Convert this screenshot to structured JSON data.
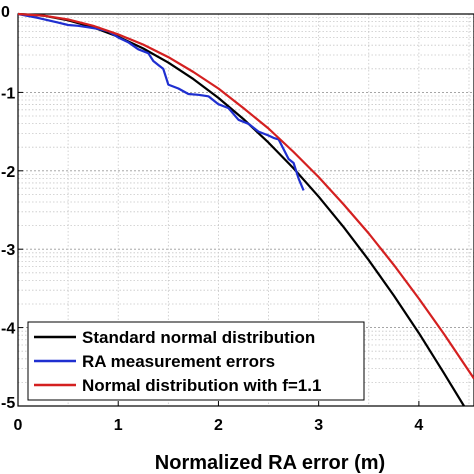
{
  "chart_data": {
    "type": "line",
    "xlabel": "Normalized RA error (m)",
    "ylabel": "",
    "xlim": [
      0,
      4.55
    ],
    "ylim": [
      -5,
      0
    ],
    "x_ticks": [
      0,
      1,
      2,
      3,
      4
    ],
    "y_ticks": [
      0,
      -1,
      -2,
      -3,
      -4,
      -5
    ],
    "y_tick_labels": [
      "0",
      "-1",
      "-2",
      "-3",
      "-4",
      "-5"
    ],
    "grid": "minor dotted horizontal, dotted vertical",
    "legend_position": "bottom-left",
    "series": [
      {
        "name": "Standard normal distribution",
        "color": "#000000",
        "x": [
          0,
          0.25,
          0.5,
          0.75,
          1.0,
          1.25,
          1.5,
          1.75,
          2.0,
          2.25,
          2.5,
          2.75,
          3.0,
          3.25,
          3.5,
          3.75,
          4.0,
          4.25,
          4.45
        ],
        "values": [
          0,
          -0.02,
          -0.08,
          -0.17,
          -0.29,
          -0.44,
          -0.62,
          -0.83,
          -1.07,
          -1.34,
          -1.64,
          -1.97,
          -2.33,
          -2.72,
          -3.14,
          -3.59,
          -4.07,
          -4.58,
          -5.0
        ]
      },
      {
        "name": "RA measurement errors",
        "color": "#1f2fd0",
        "x": [
          0,
          0.2,
          0.4,
          0.5,
          0.6,
          0.7,
          0.8,
          0.9,
          1.0,
          1.1,
          1.2,
          1.3,
          1.35,
          1.4,
          1.45,
          1.5,
          1.6,
          1.7,
          1.8,
          1.9,
          2.0,
          2.1,
          2.2,
          2.3,
          2.4,
          2.5,
          2.55,
          2.6,
          2.7,
          2.75,
          2.8,
          2.85
        ],
        "values": [
          0,
          -0.05,
          -0.11,
          -0.14,
          -0.15,
          -0.17,
          -0.19,
          -0.22,
          -0.3,
          -0.36,
          -0.45,
          -0.5,
          -0.6,
          -0.65,
          -0.7,
          -0.9,
          -0.95,
          -1.02,
          -1.03,
          -1.05,
          -1.15,
          -1.2,
          -1.35,
          -1.4,
          -1.5,
          -1.55,
          -1.58,
          -1.6,
          -1.85,
          -1.9,
          -2.1,
          -2.25
        ]
      },
      {
        "name": "Normal distribution with f=1.1",
        "color": "#d42020",
        "x": [
          0,
          0.25,
          0.5,
          0.75,
          1.0,
          1.25,
          1.5,
          1.75,
          2.0,
          2.25,
          2.5,
          2.75,
          3.0,
          3.25,
          3.5,
          3.75,
          4.0,
          4.25,
          4.55
        ],
        "values": [
          0,
          -0.02,
          -0.07,
          -0.15,
          -0.26,
          -0.39,
          -0.55,
          -0.74,
          -0.95,
          -1.2,
          -1.46,
          -1.76,
          -2.08,
          -2.43,
          -2.8,
          -3.2,
          -3.63,
          -4.08,
          -4.65
        ]
      }
    ]
  }
}
